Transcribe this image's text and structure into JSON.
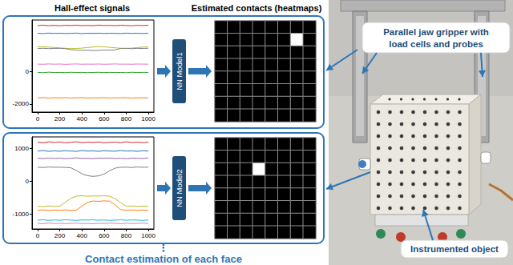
{
  "header": {
    "left": "Hall-effect signals",
    "right": "Estimated contacts (heatmaps)"
  },
  "chart_data": [
    {
      "type": "line",
      "x": [
        0,
        50,
        100,
        150,
        200,
        250,
        300,
        350,
        400,
        450,
        500,
        550,
        600,
        650,
        700,
        750,
        800,
        850,
        900,
        950,
        1000
      ],
      "xlim": [
        -50,
        1050
      ],
      "xticks": [
        0,
        200,
        400,
        600,
        800,
        1000
      ],
      "ylim": [
        -2500,
        3200
      ],
      "yticks": [
        -2000,
        0
      ],
      "grid": false,
      "series": [
        {
          "color": "#d62728",
          "values": [
            2860,
            2880,
            2850,
            2870,
            2845,
            2875,
            2860,
            2880,
            2855,
            2865,
            2850,
            2885,
            2860,
            2870,
            2850,
            2875,
            2860,
            2845,
            2870,
            2860,
            2875
          ]
        },
        {
          "color": "#1f77b4",
          "values": [
            2380,
            2360,
            2390,
            2370,
            2385,
            2365,
            2375,
            2390,
            2360,
            2380,
            2370,
            2385,
            2365,
            2380,
            2375,
            2360,
            2390,
            2370,
            2380,
            2365,
            2375
          ]
        },
        {
          "color": "#bcbd22",
          "values": [
            1560,
            1540,
            1520,
            1500,
            1470,
            1450,
            1430,
            1440,
            1460,
            1500,
            1530,
            1560,
            1540,
            1510,
            1480,
            1450,
            1440,
            1460,
            1490,
            1520,
            1540
          ]
        },
        {
          "color": "#7f7f7f",
          "values": [
            1440,
            1450,
            1430,
            1440,
            1450,
            1430,
            1360,
            1340,
            1320,
            1330,
            1310,
            1320,
            1340,
            1330,
            1350,
            1440,
            1450,
            1430,
            1445,
            1440,
            1450
          ]
        },
        {
          "color": "#e377c2",
          "values": [
            470,
            460,
            480,
            465,
            475,
            455,
            470,
            480,
            460,
            470,
            465,
            475,
            460,
            470,
            480,
            465,
            470,
            460,
            475,
            470,
            465
          ]
        },
        {
          "color": "#2ca02c",
          "values": [
            -40,
            -60,
            -30,
            -50,
            -45,
            -55,
            -35,
            -50,
            -40,
            -60,
            -45,
            -35,
            -55,
            -40,
            -50,
            -45,
            -60,
            -35,
            -50,
            -40,
            -45
          ]
        },
        {
          "color": "#ff7f0e",
          "values": [
            -1620,
            -1600,
            -1630,
            -1610,
            -1620,
            -1605,
            -1625,
            -1610,
            -1600,
            -1630,
            -1615,
            -1620,
            -1605,
            -1625,
            -1610,
            -1620,
            -1600,
            -1630,
            -1615,
            -1610,
            -1620
          ]
        }
      ]
    },
    {
      "type": "line",
      "x": [
        0,
        50,
        100,
        150,
        200,
        250,
        300,
        350,
        400,
        450,
        500,
        550,
        600,
        650,
        700,
        750,
        800,
        850,
        900,
        950,
        1000
      ],
      "xlim": [
        -50,
        1050
      ],
      "xticks": [
        0,
        200,
        400,
        600,
        800,
        1000
      ],
      "ylim": [
        -1450,
        1350
      ],
      "yticks": [
        -1000,
        0,
        1000
      ],
      "grid": false,
      "series": [
        {
          "color": "#d62728",
          "values": [
            1190,
            1175,
            1200,
            1180,
            1195,
            1170,
            1185,
            1200,
            1175,
            1190,
            1180,
            1195,
            1170,
            1185,
            1190,
            1175,
            1200,
            1180,
            1190,
            1175,
            1185
          ]
        },
        {
          "color": "#1f77b4",
          "values": [
            920,
            935,
            910,
            925,
            915,
            930,
            920,
            910,
            935,
            920,
            925,
            910,
            930,
            920,
            915,
            935,
            920,
            925,
            910,
            930,
            920
          ]
        },
        {
          "color": "#9467bd",
          "values": [
            700,
            690,
            710,
            695,
            705,
            690,
            700,
            715,
            695,
            700,
            690,
            705,
            700,
            710,
            695,
            700,
            690,
            705,
            700,
            695,
            710
          ]
        },
        {
          "color": "#7f7f7f",
          "values": [
            430,
            420,
            435,
            425,
            430,
            420,
            410,
            330,
            230,
            170,
            150,
            165,
            220,
            320,
            400,
            425,
            430,
            420,
            435,
            425,
            430
          ]
        },
        {
          "color": "#bcbd22",
          "values": [
            -760,
            -770,
            -750,
            -765,
            -755,
            -640,
            -520,
            -450,
            -440,
            -455,
            -445,
            -450,
            -440,
            -455,
            -530,
            -650,
            -760,
            -750,
            -765,
            -755,
            -760
          ]
        },
        {
          "color": "#ff7f0e",
          "values": [
            -880,
            -870,
            -885,
            -875,
            -880,
            -870,
            -885,
            -875,
            -760,
            -640,
            -600,
            -610,
            -595,
            -605,
            -720,
            -860,
            -880,
            -870,
            -885,
            -875,
            -880
          ]
        },
        {
          "color": "#17becf",
          "values": [
            -1180,
            -1170,
            -1190,
            -1175,
            -1185,
            -1170,
            -1180,
            -1190,
            -1175,
            -1180,
            -1170,
            -1185,
            -1175,
            -1190,
            -1180,
            -1170,
            -1185,
            -1175,
            -1180,
            -1190,
            -1175
          ]
        },
        {
          "color": "#e377c2",
          "values": [
            -1280,
            -1290,
            -1270,
            -1285,
            -1275,
            -1290,
            -1280,
            -1270,
            -1285,
            -1280,
            -1290,
            -1275,
            -1285,
            -1270,
            -1280,
            -1290,
            -1275,
            -1285,
            -1280,
            -1270,
            -1285
          ]
        }
      ]
    }
  ],
  "models": [
    "NN Model1",
    "NN Model2"
  ],
  "heatmaps": [
    {
      "type": "heatmap",
      "color_range": [
        0,
        1
      ],
      "cells": [
        [
          0,
          0,
          0,
          0,
          0,
          0,
          0,
          0
        ],
        [
          0,
          0,
          0,
          0,
          0,
          0,
          1,
          0
        ],
        [
          0,
          0,
          0,
          0,
          0,
          0,
          0,
          0
        ],
        [
          0,
          0,
          0,
          0,
          0,
          0,
          0,
          0
        ],
        [
          0,
          0,
          0,
          0,
          0,
          0,
          0,
          0
        ],
        [
          0,
          0,
          0,
          0,
          0,
          0,
          0,
          0
        ],
        [
          0,
          0,
          0,
          0,
          0,
          0,
          0,
          0
        ],
        [
          0,
          0,
          0,
          0,
          0,
          0,
          0,
          0
        ]
      ]
    },
    {
      "type": "heatmap",
      "color_range": [
        0,
        1
      ],
      "cells": [
        [
          0,
          0,
          0,
          0,
          0,
          0,
          0,
          0
        ],
        [
          0,
          0,
          0,
          0,
          0,
          0,
          0,
          0
        ],
        [
          0,
          0,
          0,
          1,
          0,
          0,
          0,
          0
        ],
        [
          0,
          0,
          0,
          0,
          0,
          0,
          0,
          0
        ],
        [
          0,
          0,
          0,
          0,
          0,
          0,
          0,
          0
        ],
        [
          0,
          0,
          0,
          0,
          0,
          0,
          0,
          0
        ],
        [
          0,
          0,
          0,
          0,
          0,
          0,
          0,
          0
        ],
        [
          0,
          0,
          0,
          0,
          0,
          0,
          0,
          0
        ]
      ]
    }
  ],
  "callouts": {
    "gripper": [
      "Parallel jaw gripper with",
      "load cells and probes"
    ],
    "object": "Instrumented object"
  },
  "footer": {
    "ellipsis": "⋮",
    "caption": "Contact estimation of each face"
  }
}
